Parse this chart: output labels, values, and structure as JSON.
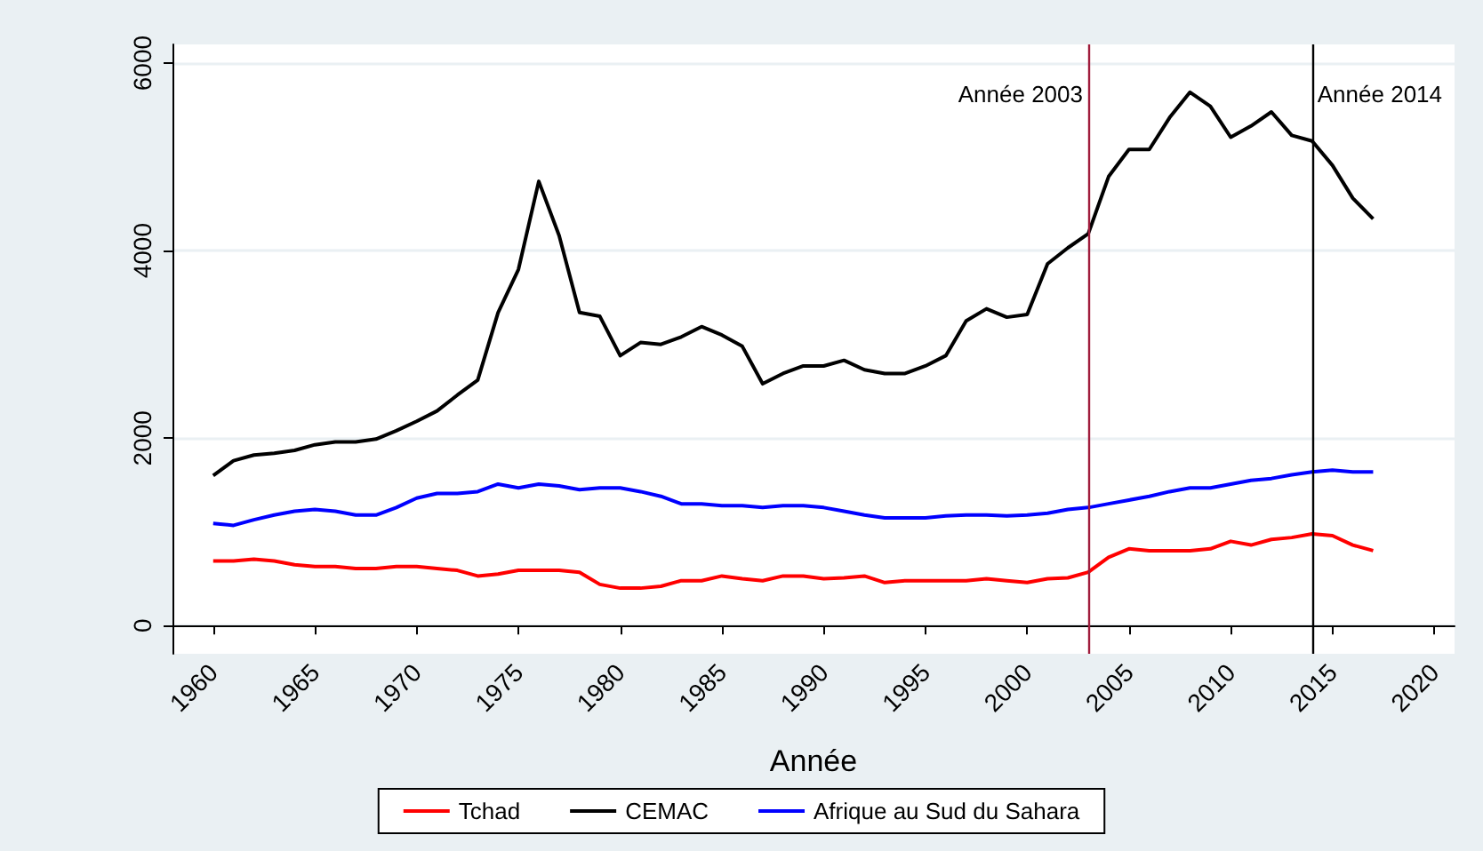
{
  "chart_data": {
    "type": "line",
    "xlabel": "Année",
    "x": [
      1960,
      1961,
      1962,
      1963,
      1964,
      1965,
      1966,
      1967,
      1968,
      1969,
      1970,
      1971,
      1972,
      1973,
      1974,
      1975,
      1976,
      1977,
      1978,
      1979,
      1980,
      1981,
      1982,
      1983,
      1984,
      1985,
      1986,
      1987,
      1988,
      1989,
      1990,
      1991,
      1992,
      1993,
      1994,
      1995,
      1996,
      1997,
      1998,
      1999,
      2000,
      2001,
      2002,
      2003,
      2004,
      2005,
      2006,
      2007,
      2008,
      2009,
      2010,
      2011,
      2012,
      2013,
      2014,
      2015,
      2016,
      2017
    ],
    "series": [
      {
        "name": "Tchad",
        "color": "#ff0000",
        "values": [
          690,
          690,
          710,
          690,
          650,
          630,
          630,
          610,
          610,
          630,
          630,
          610,
          590,
          530,
          550,
          590,
          590,
          590,
          570,
          440,
          400,
          400,
          420,
          480,
          480,
          530,
          500,
          480,
          530,
          530,
          500,
          510,
          530,
          460,
          480,
          480,
          480,
          480,
          500,
          480,
          460,
          500,
          510,
          570,
          730,
          820,
          800,
          800,
          800,
          820,
          900,
          860,
          920,
          940,
          980,
          960,
          860,
          800
        ]
      },
      {
        "name": "CEMAC",
        "color": "#000000",
        "values": [
          1600,
          1760,
          1820,
          1840,
          1870,
          1930,
          1960,
          1960,
          1990,
          2080,
          2180,
          2290,
          2460,
          2620,
          3340,
          3800,
          4740,
          4160,
          3340,
          3300,
          2880,
          3020,
          3000,
          3080,
          3190,
          3100,
          2980,
          2580,
          2690,
          2770,
          2770,
          2830,
          2730,
          2690,
          2690,
          2770,
          2880,
          3250,
          3380,
          3290,
          3320,
          3860,
          4030,
          4180,
          4790,
          5080,
          5080,
          5420,
          5690,
          5540,
          5210,
          5330,
          5480,
          5230,
          5170,
          4910,
          4560,
          4340
        ]
      },
      {
        "name": "Afrique au Sud du Sahara",
        "color": "#0000ff",
        "values": [
          1090,
          1070,
          1130,
          1180,
          1220,
          1240,
          1220,
          1180,
          1180,
          1260,
          1360,
          1410,
          1410,
          1430,
          1510,
          1470,
          1510,
          1490,
          1450,
          1470,
          1470,
          1430,
          1380,
          1300,
          1300,
          1280,
          1280,
          1260,
          1280,
          1280,
          1260,
          1220,
          1180,
          1150,
          1150,
          1150,
          1170,
          1180,
          1180,
          1170,
          1180,
          1200,
          1240,
          1260,
          1300,
          1340,
          1380,
          1430,
          1470,
          1470,
          1510,
          1550,
          1570,
          1610,
          1640,
          1660,
          1640,
          1640
        ]
      }
    ],
    "xlim": [
      1958,
      2021
    ],
    "xticks": [
      1960,
      1965,
      1970,
      1975,
      1980,
      1985,
      1990,
      1995,
      2000,
      2005,
      2010,
      2015,
      2020
    ],
    "ylim": [
      -300,
      6200
    ],
    "yticks": [
      0,
      2000,
      4000,
      6000
    ],
    "ref_lines": [
      {
        "axis": "x",
        "value": 2003,
        "label": "Année 2003",
        "color": "#a01c3c"
      },
      {
        "axis": "x",
        "value": 2014,
        "label": "Année 2014",
        "color": "#000000"
      }
    ],
    "grid": "y",
    "legend": "bottom",
    "marker": "none",
    "line_style": "solid"
  }
}
